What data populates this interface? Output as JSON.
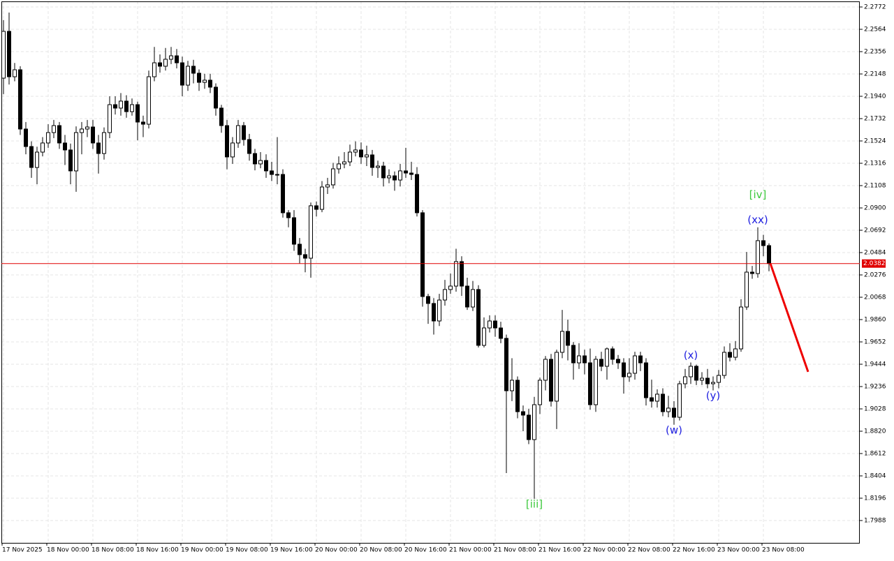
{
  "chart_data": {
    "type": "candlestick",
    "bull_color": "#ffffff",
    "bear_color": "#000000",
    "outline_color": "#000000",
    "grid": true,
    "ylim": [
      1.778,
      2.2824
    ],
    "yticks": [
      2.2772,
      2.2564,
      2.2356,
      2.2148,
      {
        "value": 2.194,
        "label": "2.1940"
      },
      2.1732,
      2.1524,
      2.1316,
      2.1108,
      {
        "value": 2.09,
        "label": "2.0900"
      },
      2.0692,
      2.0484,
      2.0276,
      2.0068,
      {
        "value": 1.986,
        "label": "1.9860"
      },
      1.9652,
      1.9444,
      1.9236,
      1.9028,
      {
        "value": 1.882,
        "label": "1.8820"
      },
      1.8612,
      1.8404,
      1.8196,
      1.7988
    ],
    "xlim": [
      -0.375,
      153.25
    ],
    "xticks": [
      {
        "value": 0,
        "label": "17 Nov 2025"
      },
      {
        "value": 8,
        "label": "18 Nov 00:00"
      },
      {
        "value": 16,
        "label": "18 Nov 08:00"
      },
      {
        "value": 24,
        "label": "18 Nov 16:00"
      },
      {
        "value": 32,
        "label": "19 Nov 00:00"
      },
      {
        "value": 40,
        "label": "19 Nov 08:00"
      },
      {
        "value": 48,
        "label": "19 Nov 16:00"
      },
      {
        "value": 56,
        "label": "20 Nov 00:00"
      },
      {
        "value": 64,
        "label": "20 Nov 08:00"
      },
      {
        "value": 72,
        "label": "20 Nov 16:00"
      },
      {
        "value": 80,
        "label": "21 Nov 00:00"
      },
      {
        "value": 88,
        "label": "21 Nov 08:00"
      },
      {
        "value": 96,
        "label": "21 Nov 16:00"
      },
      {
        "value": 104,
        "label": "22 Nov 00:00"
      },
      {
        "value": 112,
        "label": "22 Nov 08:00"
      },
      {
        "value": 120,
        "label": "22 Nov 16:00"
      },
      {
        "value": 128,
        "label": "23 Nov 00:00"
      },
      {
        "value": 136,
        "label": "23 Nov 08:00"
      }
    ],
    "open": [
      2.2109,
      2.2545,
      2.2122,
      2.2187,
      2.1635,
      2.1472,
      2.1277,
      2.142,
      2.1505,
      2.1602,
      2.1667,
      2.1505,
      2.144,
      2.1245,
      2.1602,
      2.1635,
      2.1654,
      2.1505,
      2.1407,
      2.1602,
      2.1862,
      2.183,
      2.1895,
      2.1797,
      2.1862,
      2.17,
      2.168,
      2.2122,
      2.2252,
      2.222,
      2.2285,
      2.2317,
      2.2252,
      2.2044,
      2.222,
      2.2155,
      2.207,
      2.209,
      2.2025,
      2.183,
      2.1667,
      2.1375,
      2.1505,
      2.1667,
      2.1537,
      2.1407,
      2.131,
      2.1342,
      2.1245,
      2.1212,
      2.1212,
      2.0855,
      2.0809,
      2.0562,
      2.0465,
      2.0432,
      2.092,
      2.0887,
      2.1095,
      2.1115,
      2.1264,
      2.131,
      2.1329,
      2.142,
      2.144,
      2.1375,
      2.1394,
      2.1277,
      2.129,
      2.118,
      2.1199,
      2.116,
      2.1245,
      2.1225,
      2.1212,
      2.0855,
      2.0075,
      2.001,
      1.9847,
      2.0042,
      2.014,
      2.0172,
      2.04,
      2.0172,
      1.9977,
      2.014,
      1.962,
      1.9782,
      1.9847,
      1.9782,
      1.9685,
      1.9197,
      1.9295,
      1.9002,
      1.897,
      1.8742,
      1.9067,
      1.9295,
      1.949,
      1.91,
      1.9555,
      1.975,
      1.962,
      1.9457,
      1.9522,
      1.9457,
      1.9067,
      1.949,
      1.9425,
      1.9587,
      1.949,
      1.9457,
      1.9327,
      1.936,
      1.9522,
      1.9457,
      1.9132,
      1.91,
      1.9165,
      1.9002,
      1.9035,
      1.895,
      1.9262,
      1.9327,
      1.9425,
      1.9295,
      1.9314,
      1.9262,
      1.9275,
      1.934,
      1.9555,
      1.9509,
      1.9587,
      1.9977,
      2.0302,
      2.0289,
      2.0595,
      2.0549
    ],
    "high": [
      2.265,
      2.272,
      2.225,
      2.222,
      2.17,
      2.152,
      2.147,
      2.156,
      2.168,
      2.172,
      2.17,
      2.158,
      2.15,
      2.166,
      2.17,
      2.172,
      2.172,
      2.158,
      2.165,
      2.194,
      2.194,
      2.197,
      2.195,
      2.192,
      2.189,
      2.176,
      2.218,
      2.24,
      2.233,
      2.239,
      2.24,
      2.238,
      2.231,
      2.227,
      2.228,
      2.219,
      2.215,
      2.215,
      2.206,
      2.186,
      2.172,
      2.156,
      2.172,
      2.17,
      2.159,
      2.145,
      2.142,
      2.14,
      2.133,
      2.156,
      2.126,
      2.088,
      2.088,
      2.062,
      2.052,
      2.095,
      2.096,
      2.115,
      2.118,
      2.132,
      2.138,
      2.142,
      2.149,
      2.152,
      2.151,
      2.148,
      2.144,
      2.134,
      2.133,
      2.126,
      2.124,
      2.131,
      2.146,
      2.133,
      2.128,
      2.088,
      2.01,
      2.006,
      2.01,
      2.023,
      2.029,
      2.052,
      2.045,
      2.025,
      2.022,
      2.018,
      1.988,
      1.99,
      1.99,
      1.984,
      1.972,
      1.95,
      1.933,
      1.906,
      1.903,
      1.914,
      1.932,
      1.952,
      1.954,
      1.958,
      1.995,
      1.986,
      1.965,
      1.964,
      1.958,
      1.959,
      1.952,
      1.956,
      1.96,
      1.961,
      1.953,
      1.95,
      1.95,
      1.956,
      1.956,
      1.95,
      1.93,
      1.921,
      1.922,
      1.915,
      1.91,
      1.929,
      1.94,
      1.946,
      1.944,
      1.937,
      1.94,
      1.933,
      1.939,
      1.961,
      1.964,
      1.966,
      2.005,
      2.049,
      2.036,
      2.072,
      2.065,
      2.057
    ],
    "low": [
      2.196,
      2.205,
      2.208,
      2.158,
      2.14,
      2.118,
      2.112,
      2.138,
      2.146,
      2.155,
      2.145,
      2.13,
      2.112,
      2.105,
      2.14,
      2.156,
      2.145,
      2.122,
      2.135,
      2.155,
      2.177,
      2.176,
      2.174,
      2.176,
      2.153,
      2.156,
      2.164,
      2.208,
      2.216,
      2.218,
      2.224,
      2.22,
      2.194,
      2.199,
      2.206,
      2.199,
      2.201,
      2.197,
      2.176,
      2.16,
      2.126,
      2.131,
      2.146,
      2.148,
      2.134,
      2.125,
      2.127,
      2.118,
      2.115,
      2.112,
      2.081,
      2.072,
      2.05,
      2.038,
      2.03,
      2.025,
      2.082,
      2.086,
      2.103,
      2.108,
      2.122,
      2.127,
      2.129,
      2.138,
      2.131,
      2.129,
      2.12,
      2.118,
      2.11,
      2.113,
      2.106,
      2.11,
      2.118,
      2.116,
      2.082,
      1.998,
      1.982,
      1.972,
      1.98,
      1.999,
      2.01,
      2.012,
      2.008,
      1.995,
      1.994,
      1.96,
      1.96,
      1.974,
      1.97,
      1.964,
      1.843,
      1.91,
      1.894,
      1.882,
      1.87,
      1.819,
      1.898,
      1.92,
      1.905,
      1.884,
      1.95,
      1.948,
      1.93,
      1.94,
      1.935,
      1.902,
      1.9,
      1.938,
      1.93,
      1.944,
      1.94,
      1.917,
      1.928,
      1.93,
      1.938,
      1.906,
      1.904,
      1.904,
      1.896,
      1.895,
      1.888,
      1.892,
      1.922,
      1.926,
      1.925,
      1.925,
      1.922,
      1.92,
      1.922,
      1.931,
      1.947,
      1.948,
      1.956,
      1.995,
      2.024,
      2.025,
      2.045,
      2.031
    ],
    "close": [
      2.2545,
      2.2122,
      2.2187,
      2.1635,
      2.1472,
      2.1277,
      2.142,
      2.1505,
      2.1602,
      2.1667,
      2.1505,
      2.144,
      2.1245,
      2.1602,
      2.1635,
      2.1654,
      2.1505,
      2.1407,
      2.1602,
      2.1862,
      2.183,
      2.1895,
      2.1797,
      2.1862,
      2.17,
      2.168,
      2.2122,
      2.2252,
      2.222,
      2.2285,
      2.2317,
      2.2252,
      2.2044,
      2.222,
      2.2155,
      2.207,
      2.209,
      2.2025,
      2.183,
      2.1667,
      2.1375,
      2.1505,
      2.1667,
      2.1537,
      2.1407,
      2.131,
      2.1342,
      2.1245,
      2.1212,
      2.1212,
      2.0855,
      2.0809,
      2.0562,
      2.0465,
      2.0432,
      2.092,
      2.0887,
      2.1095,
      2.1115,
      2.1264,
      2.131,
      2.1329,
      2.142,
      2.144,
      2.1375,
      2.1394,
      2.1277,
      2.129,
      2.118,
      2.1199,
      2.116,
      2.1245,
      2.1225,
      2.1212,
      2.0855,
      2.0075,
      2.001,
      1.9847,
      2.0042,
      2.014,
      2.0172,
      2.04,
      2.0172,
      1.9977,
      2.014,
      1.962,
      1.9782,
      1.9847,
      1.9782,
      1.9685,
      1.9197,
      1.9295,
      1.9002,
      1.897,
      1.8742,
      1.9067,
      1.9295,
      1.949,
      1.91,
      1.9555,
      1.975,
      1.962,
      1.9457,
      1.9522,
      1.9457,
      1.9067,
      1.949,
      1.9425,
      1.9587,
      1.949,
      1.9457,
      1.9327,
      1.936,
      1.9522,
      1.9457,
      1.9132,
      1.91,
      1.9165,
      1.9002,
      1.9035,
      1.895,
      1.9262,
      1.9327,
      1.9425,
      1.9295,
      1.9314,
      1.9262,
      1.9275,
      1.934,
      1.9555,
      1.9509,
      1.9587,
      1.9977,
      2.0302,
      2.0289,
      2.0595,
      2.0549,
      2.0382
    ],
    "last_price": {
      "value": 2.0382,
      "label": "2.0382"
    },
    "last_price_color": "#e00000",
    "forecast": {
      "to": 1.9373,
      "bars": 7,
      "color": "#ee0000"
    },
    "annotations": [
      {
        "text": "[iii]",
        "at": 95,
        "side": "below",
        "color": "#3cc83c"
      },
      {
        "text": "(w)",
        "at": 120,
        "side": "below",
        "color": "#2020e0"
      },
      {
        "text": "(x)",
        "at": 123,
        "side": "above",
        "color": "#2020e0"
      },
      {
        "text": "(y)",
        "at": 127,
        "side": "below",
        "color": "#2020e0"
      },
      {
        "text": "(xx)",
        "at": 135,
        "side": "above",
        "color": "#2020e0"
      },
      {
        "text": "[iv]",
        "at": 135,
        "side": "above",
        "color": "#3cc83c"
      }
    ]
  }
}
